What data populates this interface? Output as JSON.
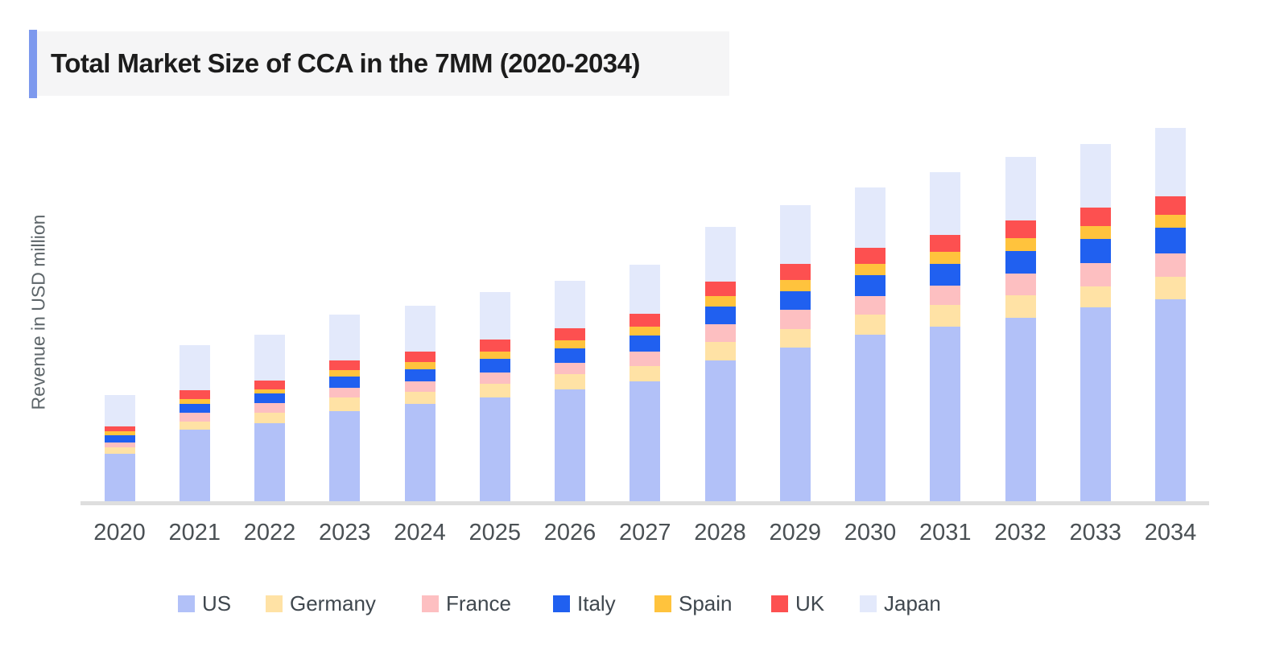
{
  "title": "Total Market Size of CCA in the 7MM (2020-2034)",
  "colors": {
    "accent_bar": "#7d99ee",
    "title_background": "#f5f5f6",
    "title_text": "#1c1c1c",
    "axis_line": "#dedede",
    "x_tick_text": "#4a5054",
    "y_label_text": "#5d6569",
    "legend_text": "#3f474e",
    "page_background": "#ffffff"
  },
  "chart_data": {
    "type": "bar",
    "stacked": true,
    "title": "Total Market Size of CCA in the 7MM (2020-2034)",
    "xlabel": "",
    "ylabel": "Revenue in USD million",
    "categories": [
      "2020",
      "2021",
      "2022",
      "2023",
      "2024",
      "2025",
      "2026",
      "2027",
      "2028",
      "2029",
      "2030",
      "2031",
      "2032",
      "2033",
      "2034"
    ],
    "series": [
      {
        "name": "US",
        "color": "#b2c1f8",
        "values": [
          59,
          89,
          97,
          112,
          121,
          129,
          139,
          149,
          175,
          191,
          207,
          217,
          228,
          241,
          251
        ]
      },
      {
        "name": "Germany",
        "color": "#ffe2a5",
        "values": [
          8,
          10,
          13,
          17,
          15,
          17,
          19,
          19,
          23,
          23,
          25,
          27,
          28,
          26,
          28
        ]
      },
      {
        "name": "France",
        "color": "#fdbfc1",
        "values": [
          6,
          11,
          12,
          12,
          13,
          14,
          14,
          18,
          22,
          24,
          23,
          24,
          27,
          29,
          29
        ]
      },
      {
        "name": "Italy",
        "color": "#2060f0",
        "values": [
          9,
          11,
          12,
          14,
          15,
          17,
          18,
          20,
          22,
          23,
          26,
          27,
          28,
          30,
          32
        ]
      },
      {
        "name": "Spain",
        "color": "#ffc33d",
        "values": [
          5,
          6,
          5,
          8,
          9,
          9,
          10,
          11,
          13,
          14,
          14,
          15,
          16,
          16,
          16
        ]
      },
      {
        "name": "UK",
        "color": "#fd5050",
        "values": [
          6,
          11,
          11,
          12,
          13,
          15,
          15,
          16,
          18,
          20,
          20,
          21,
          22,
          23,
          23
        ]
      },
      {
        "name": "Japan",
        "color": "#e3e9fb",
        "values": [
          39,
          56,
          57,
          57,
          57,
          59,
          59,
          61,
          68,
          73,
          75,
          78,
          79,
          79,
          85
        ]
      }
    ],
    "totals": [
      132,
      194,
      207,
      232,
      243,
      260,
      274,
      294,
      341,
      368,
      390,
      409,
      428,
      444,
      464
    ],
    "ylim": [
      0,
      500
    ],
    "y_ticks_visible": false,
    "grid": false,
    "legend_position": "bottom"
  }
}
